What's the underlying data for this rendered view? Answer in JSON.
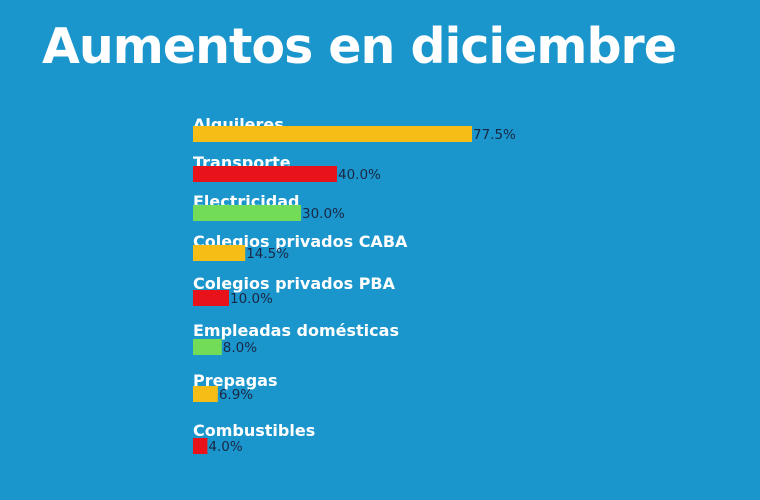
{
  "title": "Aumentos en diciembre",
  "colors": {
    "background": "#1b96cc",
    "yellow": "#f6bd16",
    "red": "#e8121b",
    "green": "#72db58"
  },
  "chart_data": {
    "type": "bar",
    "orientation": "horizontal",
    "title": "Aumentos en diciembre",
    "xlabel": "",
    "ylabel": "",
    "xlim": [
      0,
      77.5
    ],
    "grid": false,
    "categories": [
      "Alquileres",
      "Transporte",
      "Electricidad",
      "Colegios privados CABA",
      "Colegios privados PBA",
      "Empleadas domésticas",
      "Prepagas",
      "Combustibles"
    ],
    "values": [
      77.5,
      40.0,
      30.0,
      14.5,
      10.0,
      8.0,
      6.9,
      4.0
    ],
    "value_labels": [
      "77.5%",
      "40.0%",
      "30.0%",
      "14.5%",
      "10.0%",
      "8.0%",
      "6.9%",
      "4.0%"
    ],
    "bar_colors": [
      "#f6bd16",
      "#e8121b",
      "#72db58",
      "#f6bd16",
      "#e8121b",
      "#72db58",
      "#f6bd16",
      "#e8121b"
    ]
  }
}
